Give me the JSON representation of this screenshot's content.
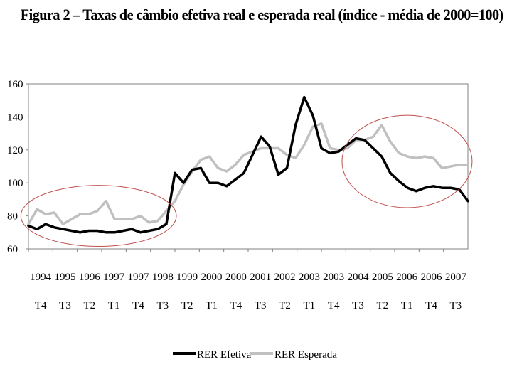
{
  "chart_data": {
    "type": "line",
    "title": "Figura 2 – Taxas de câmbio efetiva real e esperada real (índice - média de 2000=100)",
    "xlabel": "",
    "ylabel": "",
    "ylim": [
      60,
      160
    ],
    "yticks": [
      "60",
      "80",
      "100",
      "120",
      "140",
      "160"
    ],
    "xticks_year": [
      "1994",
      "1995",
      "1996",
      "1997",
      "1997",
      "1998",
      "1999",
      "2000",
      "2000",
      "2001",
      "2002",
      "2003",
      "2003",
      "2004",
      "2005",
      "2006",
      "2006",
      "2007"
    ],
    "xticks_period": [
      "T4",
      "T3",
      "T2",
      "T1",
      "T4",
      "T3",
      "T2",
      "T1",
      "T4",
      "T3",
      "T2",
      "T1",
      "T4",
      "T3",
      "T2",
      "T1",
      "T4",
      "T3"
    ],
    "x_range_quarters": [
      0,
      52
    ],
    "grid": false,
    "legend_position": "bottom-center",
    "series": [
      {
        "name": "RER Efetiva",
        "color": "#000000",
        "values": [
          74,
          72,
          75,
          73,
          72,
          71,
          70,
          71,
          71,
          70,
          70,
          71,
          72,
          70,
          71,
          72,
          75,
          106,
          100,
          108,
          109,
          100,
          100,
          98,
          102,
          106,
          117,
          128,
          122,
          105,
          109,
          135,
          152,
          141,
          121,
          118,
          119,
          123,
          127,
          126,
          121,
          116,
          106,
          101,
          97,
          95,
          97,
          98,
          97,
          97,
          96,
          89
        ]
      },
      {
        "name": "RER Esperada",
        "color": "#c0c0c0",
        "values": [
          75,
          84,
          81,
          82,
          75,
          78,
          81,
          81,
          83,
          89,
          78,
          78,
          78,
          80,
          76,
          77,
          83,
          89,
          99,
          107,
          114,
          116,
          109,
          107,
          111,
          117,
          119,
          121,
          121,
          121,
          117,
          115,
          123,
          134,
          136,
          121,
          120,
          121,
          126,
          126,
          128,
          135,
          125,
          118,
          116,
          115,
          116,
          115,
          109,
          110,
          111,
          111
        ]
      }
    ],
    "annotations": [
      {
        "shape": "ellipse",
        "color": "#c0504d",
        "x_center": 8.3,
        "y_center": 80,
        "x_radius": 9.2,
        "y_radius": 18.5
      },
      {
        "shape": "ellipse",
        "color": "#c0504d",
        "x_center": 44.8,
        "y_center": 113,
        "x_radius": 7.7,
        "y_radius": 28
      }
    ]
  },
  "legend": {
    "items": [
      {
        "label": "RER Efetiva",
        "color": "#000000"
      },
      {
        "label": "RER Esperada",
        "color": "#c0c0c0"
      }
    ]
  }
}
